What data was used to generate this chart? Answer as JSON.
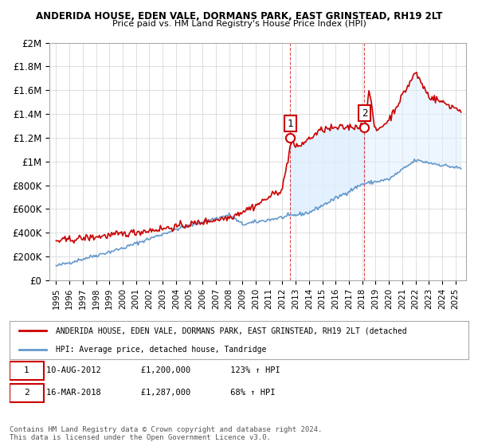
{
  "title": "ANDERIDA HOUSE, EDEN VALE, DORMANS PARK, EAST GRINSTEAD, RH19 2LT",
  "subtitle": "Price paid vs. HM Land Registry's House Price Index (HPI)",
  "ylim": [
    0,
    2000000
  ],
  "yticks": [
    0,
    200000,
    400000,
    600000,
    800000,
    1000000,
    1200000,
    1400000,
    1600000,
    1800000,
    2000000
  ],
  "ytick_labels": [
    "£0",
    "£200K",
    "£400K",
    "£600K",
    "£800K",
    "£1M",
    "£1.2M",
    "£1.4M",
    "£1.6M",
    "£1.8M",
    "£2M"
  ],
  "sale1_date": "2012-08-10",
  "sale1_price": 1200000,
  "sale1_label": "1",
  "sale2_date": "2018-03-16",
  "sale2_price": 1287000,
  "sale2_label": "2",
  "legend_line1": "ANDERIDA HOUSE, EDEN VALE, DORMANS PARK, EAST GRINSTEAD, RH19 2LT (detached",
  "legend_line2": "HPI: Average price, detached house, Tandridge",
  "annotation1": "10-AUG-2012        £1,200,000        123% ↑ HPI",
  "annotation2": "16-MAR-2018        £1,287,000        68% ↑ HPI",
  "footer": "Contains HM Land Registry data © Crown copyright and database right 2024.\nThis data is licensed under the Open Government Licence v3.0.",
  "line_color_red": "#cc0000",
  "line_color_blue": "#6699cc",
  "shading_color": "#ddeeff",
  "background_color": "#ffffff",
  "grid_color": "#dddddd"
}
